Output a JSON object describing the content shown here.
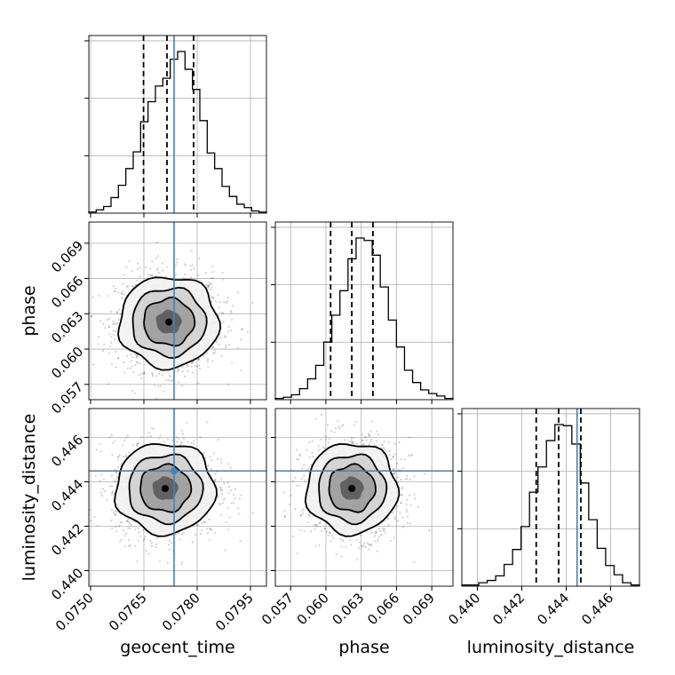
{
  "chart_data": {
    "type": "corner",
    "parameters": [
      "geocent_time",
      "phase",
      "luminosity_distance"
    ],
    "axis_labels": {
      "geocent_time": "geocent_time",
      "phase": "phase",
      "luminosity_distance": "luminosity_distance"
    },
    "ranges": {
      "geocent_time": [
        0.07495,
        0.07995
      ],
      "phase": [
        0.0557,
        0.0708
      ],
      "luminosity_distance": [
        0.4393,
        0.4473
      ]
    },
    "ticks": {
      "geocent_time": [
        0.075,
        0.0765,
        0.078,
        0.0795
      ],
      "phase": [
        0.057,
        0.06,
        0.063,
        0.066,
        0.069
      ],
      "luminosity_distance": [
        0.44,
        0.442,
        0.444,
        0.446
      ]
    },
    "tick_labels": {
      "geocent_time": [
        "0.0750",
        "0.0765",
        "0.0780",
        "0.0795"
      ],
      "phase": [
        "0.057",
        "0.060",
        "0.063",
        "0.066",
        "0.069"
      ],
      "luminosity_distance": [
        "0.440",
        "0.442",
        "0.444",
        "0.446"
      ]
    },
    "injection_values": {
      "geocent_time": 0.07735,
      "phase": null,
      "luminosity_distance": 0.44449
    },
    "quantiles": {
      "geocent_time": [
        0.07649,
        0.07715,
        0.0779
      ],
      "phase": [
        0.0604,
        0.0622,
        0.064
      ],
      "luminosity_distance": [
        0.44265,
        0.44366,
        0.44466
      ]
    },
    "histograms": {
      "geocent_time": [
        1,
        3,
        6,
        14,
        25,
        40,
        55,
        82,
        100,
        114,
        121,
        138,
        145,
        129,
        111,
        83,
        54,
        40,
        24,
        15,
        8,
        5,
        2,
        1
      ],
      "phase": [
        1,
        2,
        4,
        9,
        17,
        28,
        47,
        69,
        89,
        115,
        132,
        130,
        118,
        92,
        65,
        43,
        24,
        14,
        8,
        5,
        3,
        1
      ],
      "luminosity_distance": [
        1,
        1,
        3,
        5,
        9,
        19,
        32,
        52,
        82,
        104,
        127,
        141,
        140,
        124,
        90,
        58,
        33,
        18,
        10,
        3,
        1
      ]
    },
    "posterior_centers": {
      "geocent_time_vs_phase": [
        0.0772,
        0.0623
      ],
      "geocent_time_vs_luminosity_distance": [
        0.0771,
        0.4437
      ],
      "phase_vs_luminosity_distance": [
        0.0622,
        0.4437
      ]
    },
    "posterior_spreads": {
      "geocent_time": 0.00065,
      "phase": 0.0018,
      "luminosity_distance": 0.00095
    },
    "colors": {
      "truth": "#4682b4",
      "hist": "#000000",
      "grid": "#b0b0b0"
    },
    "grid": true
  }
}
